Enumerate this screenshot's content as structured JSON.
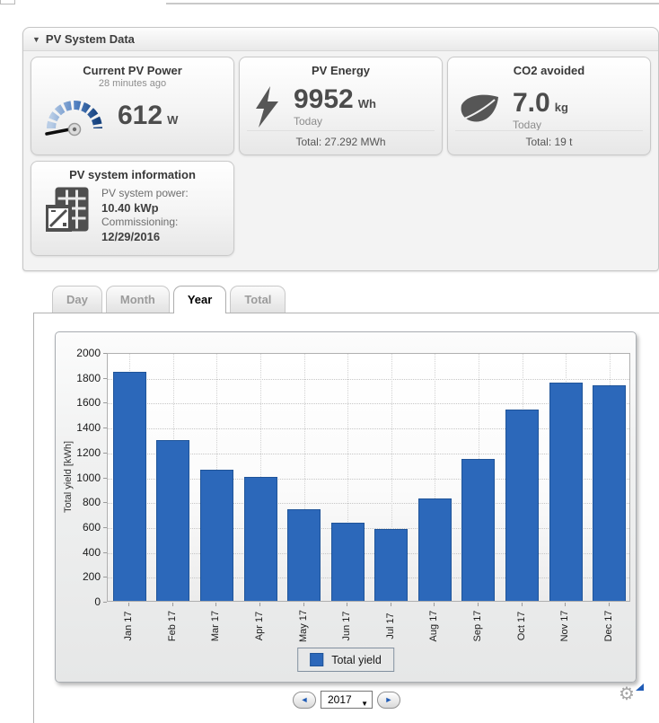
{
  "panel": {
    "title": "PV System Data",
    "collapse_icon": "▼"
  },
  "cards": {
    "current_power": {
      "title": "Current PV Power",
      "subtitle": "28 minutes ago",
      "value": "612",
      "unit": "W"
    },
    "pv_energy": {
      "title": "PV Energy",
      "value": "9952",
      "unit": "Wh",
      "period": "Today",
      "total": "Total: 27.292 MWh"
    },
    "co2_avoided": {
      "title": "CO2 avoided",
      "value": "7.0",
      "unit": "kg",
      "period": "Today",
      "total": "Total: 19 t"
    },
    "system_info": {
      "title": "PV system information",
      "rows": [
        {
          "label": "PV system power:",
          "value": "10.40 kWp"
        },
        {
          "label": "Commissioning:",
          "value": "12/29/2016"
        }
      ]
    }
  },
  "tabs": [
    {
      "label": "Day",
      "active": false
    },
    {
      "label": "Month",
      "active": false
    },
    {
      "label": "Year",
      "active": true
    },
    {
      "label": "Total",
      "active": false
    }
  ],
  "chart_data": {
    "type": "bar",
    "title": "",
    "categories": [
      "Jan 17",
      "Feb 17",
      "Mar 17",
      "Apr 17",
      "May 17",
      "Jun 17",
      "Jul 17",
      "Aug 17",
      "Sep 17",
      "Oct 17",
      "Nov 17",
      "Dec 17"
    ],
    "values": [
      1840,
      1290,
      1055,
      1000,
      740,
      630,
      580,
      820,
      1140,
      1540,
      1755,
      1730
    ],
    "xlabel": "",
    "ylabel": "Total yield [kWh]",
    "ylim": [
      0,
      2000
    ],
    "ytick_step": 200,
    "grid": true,
    "legend": [
      {
        "label": "Total yield",
        "color": "#2c68ba"
      }
    ],
    "legend_position": "bottom",
    "bar_color": "#2c68ba",
    "bar_border_color": "#1f5499"
  },
  "controls": {
    "year": "2017",
    "prev_icon": "◄",
    "next_icon": "►",
    "caret_icon": "▼"
  },
  "colors": {
    "accent_blue": "#2c68ba",
    "bar_blue": "#2c68ba"
  }
}
